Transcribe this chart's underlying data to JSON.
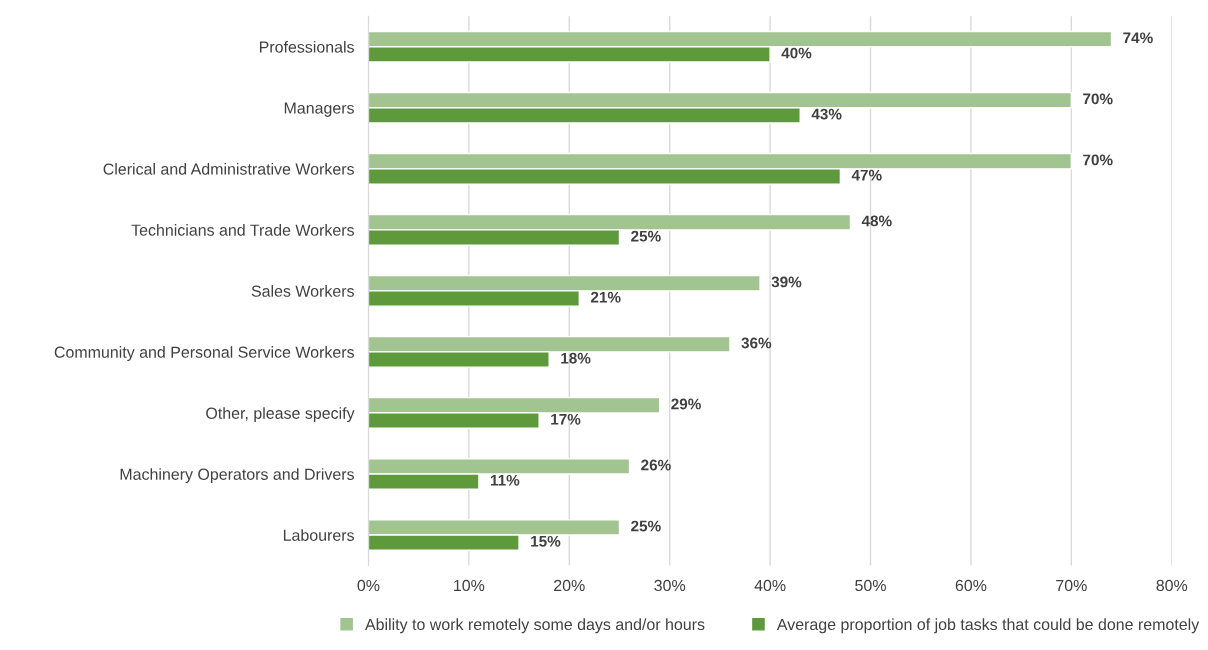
{
  "chart_data": {
    "type": "bar",
    "orientation": "horizontal",
    "categories": [
      "Professionals",
      "Managers",
      "Clerical and Administrative Workers",
      "Technicians and Trade Workers",
      "Sales Workers",
      "Community and Personal Service Workers",
      "Other, please specify",
      "Machinery Operators and Drivers",
      "Labourers"
    ],
    "series": [
      {
        "name": "Ability to work remotely some days and/or hours",
        "color": "#a1c490",
        "values": [
          74,
          70,
          70,
          48,
          39,
          36,
          29,
          26,
          25
        ],
        "value_labels": [
          "74%",
          "70%",
          "70%",
          "48%",
          "39%",
          "36%",
          "29%",
          "26%",
          "25%"
        ]
      },
      {
        "name": "Average proportion of job tasks that could be done remotely",
        "color": "#5e9a3c",
        "values": [
          40,
          43,
          47,
          25,
          21,
          18,
          17,
          11,
          15
        ],
        "value_labels": [
          "40%",
          "43%",
          "47%",
          "25%",
          "21%",
          "18%",
          "17%",
          "11%",
          "15%"
        ]
      }
    ],
    "xlim": [
      0,
      80
    ],
    "xticks": [
      {
        "value": 0,
        "label": "0%"
      },
      {
        "value": 10,
        "label": "10%"
      },
      {
        "value": 20,
        "label": "20%"
      },
      {
        "value": 30,
        "label": "30%"
      },
      {
        "value": 40,
        "label": "40%"
      },
      {
        "value": 50,
        "label": "50%"
      },
      {
        "value": 60,
        "label": "60%"
      },
      {
        "value": 70,
        "label": "70%"
      },
      {
        "value": 80,
        "label": "80%"
      }
    ],
    "grid": "x",
    "legend": "bottom"
  }
}
